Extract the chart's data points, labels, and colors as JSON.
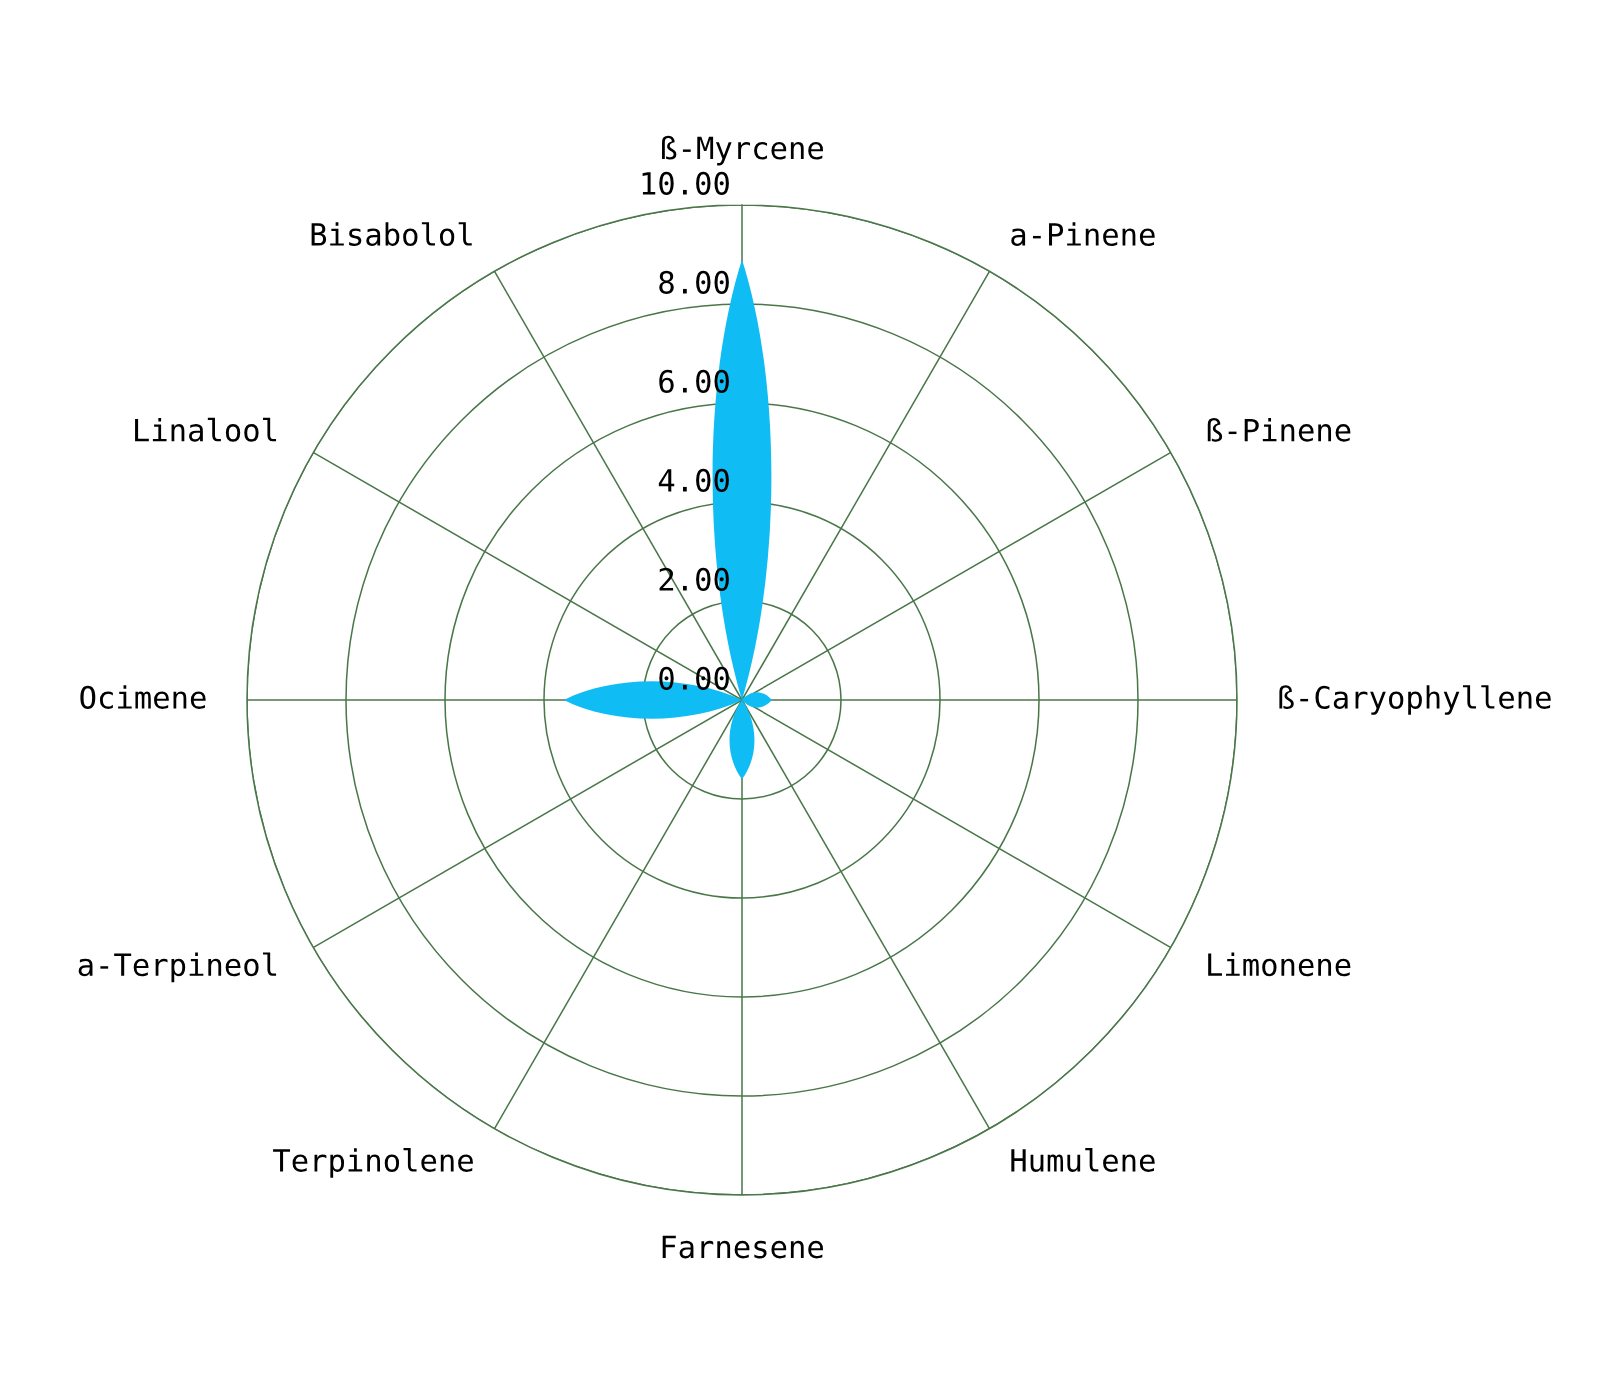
{
  "chart_data": {
    "type": "radar",
    "categories": [
      "ß-Myrcene",
      "a-Pinene",
      "ß-Pinene",
      "ß-Caryophyllene",
      "Limonene",
      "Humulene",
      "Farnesene",
      "Terpinolene",
      "a-Terpineol",
      "Ocimene",
      "Linalool",
      "Bisabolol"
    ],
    "series": [
      {
        "color": "#10bcf4",
        "values": [
          8.9,
          0,
          0,
          0.6,
          0,
          0,
          1.6,
          0,
          0,
          3.6,
          0,
          0
        ]
      }
    ],
    "ylim": [
      0,
      10
    ],
    "yticks": [
      {
        "value": 0,
        "label": "0.00"
      },
      {
        "value": 2,
        "label": "2.00"
      },
      {
        "value": 4,
        "label": "4.00"
      },
      {
        "value": 6,
        "label": "6.00"
      },
      {
        "value": 8,
        "label": "8.00"
      },
      {
        "value": 10,
        "label": "10.00"
      }
    ],
    "grid": true
  }
}
